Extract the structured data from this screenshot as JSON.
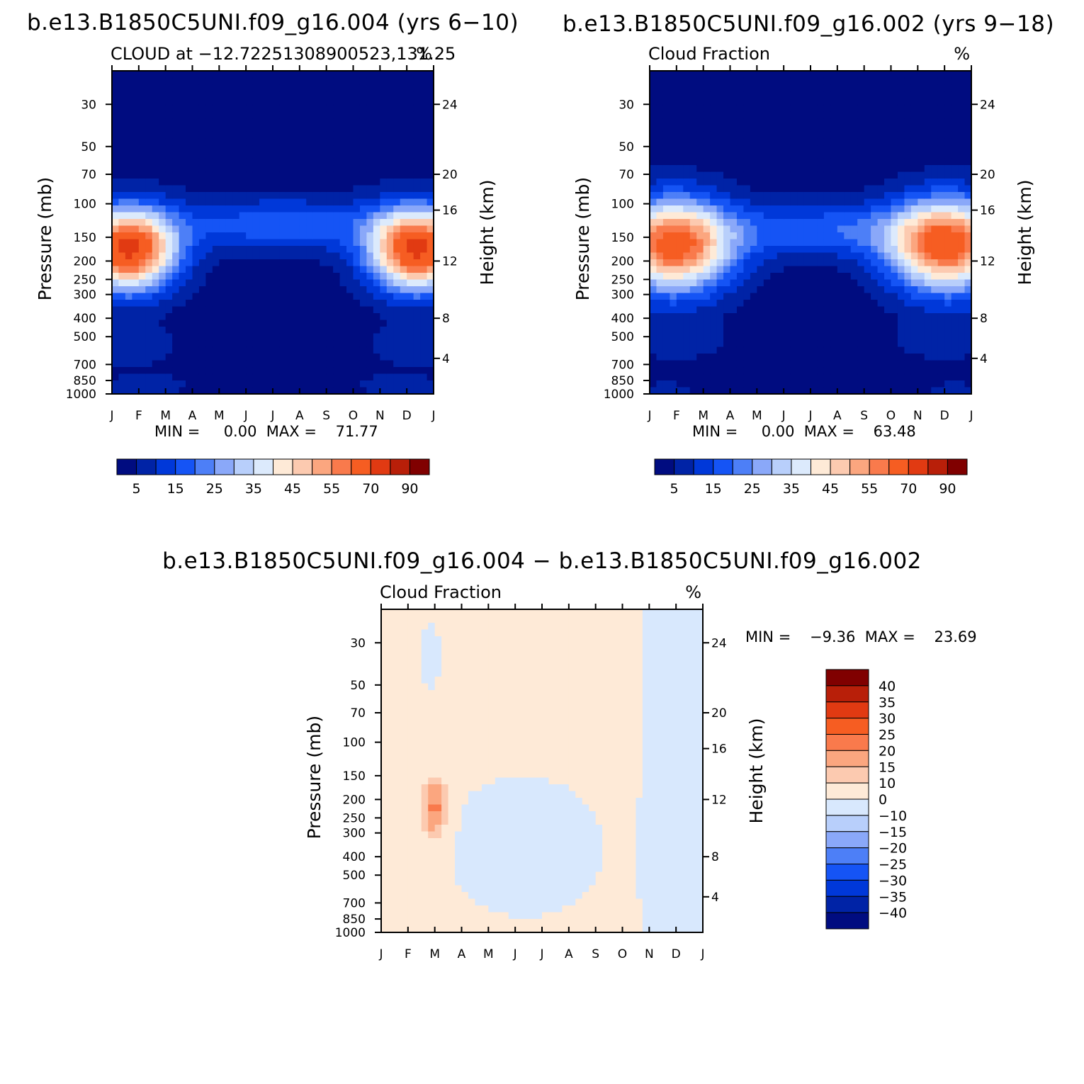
{
  "chart_data": [
    {
      "type": "heatmap",
      "title": "b.e13.B1850C5UNI.f09_g16.004 (yrs 6−10)",
      "left_label": "CLOUD at −12.72251308900523,131.25",
      "right_label": "%",
      "xlabel": "",
      "ylabel": "Pressure (mb)",
      "ylabel_right": "Height (km)",
      "x_ticks": [
        "J",
        "F",
        "M",
        "A",
        "M",
        "J",
        "J",
        "A",
        "S",
        "O",
        "N",
        "D",
        "J"
      ],
      "y_ticks": [
        "30",
        "50",
        "70",
        "100",
        "150",
        "200",
        "250",
        "300",
        "400",
        "500",
        "700",
        "850",
        "1000"
      ],
      "height_ticks": [
        "24",
        "20",
        "16",
        "12",
        "8",
        "4"
      ],
      "ylim": [
        1000,
        20
      ],
      "log_scale_y": true,
      "stats_label": "MIN =     0.00  MAX =    71.77",
      "min": 0.0,
      "max": 71.77,
      "colorbar_labels": [
        "5",
        "15",
        "25",
        "35",
        "45",
        "55",
        "70",
        "90"
      ],
      "colorbar_orientation": "horizontal",
      "features": [
        {
          "description": "core maximum",
          "months": [
            "J",
            "F",
            "M"
          ],
          "pressure_range": [
            130,
            280
          ],
          "value": 65
        },
        {
          "description": "core maximum",
          "months": [
            "D",
            "J"
          ],
          "pressure_range": [
            130,
            260
          ],
          "value": 60
        },
        {
          "description": "weak upper cloud",
          "months": [
            "M",
            "J",
            "J",
            "A",
            "S",
            "O",
            "N"
          ],
          "pressure_range": [
            90,
            200
          ],
          "value": 15
        }
      ]
    },
    {
      "type": "heatmap",
      "title": "b.e13.B1850C5UNI.f09_g16.002 (yrs 9−18)",
      "left_label": "Cloud Fraction",
      "right_label": "%",
      "xlabel": "",
      "ylabel": "Pressure (mb)",
      "ylabel_right": "Height (km)",
      "x_ticks": [
        "J",
        "F",
        "M",
        "A",
        "M",
        "J",
        "J",
        "A",
        "S",
        "O",
        "N",
        "D",
        "J"
      ],
      "y_ticks": [
        "30",
        "50",
        "70",
        "100",
        "150",
        "200",
        "250",
        "300",
        "400",
        "500",
        "700",
        "850",
        "1000"
      ],
      "height_ticks": [
        "24",
        "20",
        "16",
        "12",
        "8",
        "4"
      ],
      "ylim": [
        1000,
        20
      ],
      "log_scale_y": true,
      "stats_label": "MIN =     0.00  MAX =    63.48",
      "min": 0.0,
      "max": 63.48,
      "colorbar_labels": [
        "5",
        "15",
        "25",
        "35",
        "45",
        "55",
        "70",
        "90"
      ],
      "colorbar_orientation": "horizontal",
      "features": [
        {
          "description": "core maximum",
          "months": [
            "J",
            "F",
            "M"
          ],
          "pressure_range": [
            130,
            260
          ],
          "value": 58
        },
        {
          "description": "core maximum",
          "months": [
            "D",
            "J"
          ],
          "pressure_range": [
            130,
            250
          ],
          "value": 55
        },
        {
          "description": "weak upper cloud",
          "months": [
            "M",
            "J",
            "J",
            "A",
            "S",
            "O",
            "N"
          ],
          "pressure_range": [
            90,
            220
          ],
          "value": 15
        }
      ]
    },
    {
      "type": "heatmap",
      "title": "b.e13.B1850C5UNI.f09_g16.004 − b.e13.B1850C5UNI.f09_g16.002",
      "left_label": "Cloud Fraction",
      "right_label": "%",
      "xlabel": "",
      "ylabel": "Pressure (mb)",
      "ylabel_right": "Height (km)",
      "x_ticks": [
        "J",
        "F",
        "M",
        "A",
        "M",
        "J",
        "J",
        "A",
        "S",
        "O",
        "N",
        "D",
        "J"
      ],
      "y_ticks": [
        "30",
        "50",
        "70",
        "100",
        "150",
        "200",
        "250",
        "300",
        "400",
        "500",
        "700",
        "850",
        "1000"
      ],
      "height_ticks": [
        "24",
        "20",
        "16",
        "12",
        "8",
        "4"
      ],
      "ylim": [
        1000,
        20
      ],
      "log_scale_y": true,
      "stats_label": "MIN =    −9.36  MAX =    23.69",
      "min": -9.36,
      "max": 23.69,
      "colorbar_labels": [
        "40",
        "35",
        "30",
        "25",
        "20",
        "15",
        "10",
        "0",
        "−10",
        "−15",
        "−20",
        "−25",
        "−30",
        "−35",
        "−40"
      ],
      "colorbar_orientation": "vertical",
      "features": [
        {
          "description": "positive difference maximum",
          "months": [
            "M"
          ],
          "pressure_range": [
            180,
            280
          ],
          "value": 23.69
        },
        {
          "description": "small negative region",
          "months": [
            "A",
            "M",
            "J",
            "J",
            "A",
            "S"
          ],
          "pressure_range": [
            200,
            1000
          ],
          "value": -5
        },
        {
          "description": "negative region",
          "months": [
            "N",
            "D",
            "J"
          ],
          "pressure_range": [
            20,
            1000
          ],
          "value": -5
        }
      ]
    }
  ],
  "colors": {
    "cmap_abs": [
      "#000c80",
      "#0023a6",
      "#0038d9",
      "#1554f5",
      "#4d7ff7",
      "#8aa8f9",
      "#b8cffb",
      "#dceafc",
      "#feead7",
      "#fccab0",
      "#fba67f",
      "#f97a4c",
      "#f65d22",
      "#e13a12",
      "#b81f09",
      "#800000"
    ],
    "cmap_diff": [
      "#800000",
      "#b81f09",
      "#e13a12",
      "#f65d22",
      "#f97a4c",
      "#fba67f",
      "#fccab0",
      "#feead7",
      "#d8e8fd",
      "#b8cffb",
      "#8aa8f9",
      "#4d7ff7",
      "#1554f5",
      "#0038d9",
      "#0023a6",
      "#000c80"
    ]
  }
}
